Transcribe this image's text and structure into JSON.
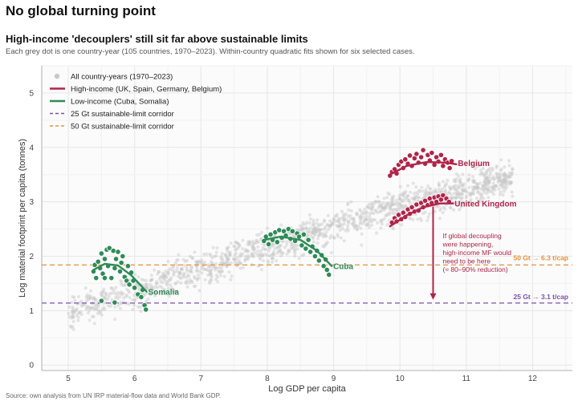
{
  "header": {
    "title": "No global turning point",
    "subtitle": "High-income 'decouplers' still sit far above sustainable limits",
    "caption": "Each grey dot is one country-year (105 countries, 1970–2023). Within-country quadratic fits shown for six selected cases.",
    "source": "Source: own analysis from UN IRP material-flow data and World Bank GDP."
  },
  "colors": {
    "grey": "#c8c8c8",
    "high_income": "#b0254a",
    "low_income": "#2e8b57",
    "corridor_25": "#7b52ab",
    "corridor_50": "#e8923a"
  },
  "chart_data": {
    "type": "scatter",
    "xlabel": "Log GDP per capita",
    "ylabel": "Log material footprint per capita (tonnes)",
    "xlim": [
      4.6,
      12.6
    ],
    "ylim": [
      -0.1,
      5.5
    ],
    "xticks": [
      5,
      6,
      7,
      8,
      9,
      10,
      11,
      12
    ],
    "yticks": [
      0,
      1,
      2,
      3,
      4,
      5
    ],
    "grid": true,
    "legend_position": "top-left",
    "legend": [
      {
        "label": "All country-years (1970–2023)",
        "kind": "dot",
        "color_key": "grey"
      },
      {
        "label": "High-income (UK, Spain, Germany, Belgium)",
        "kind": "line",
        "color_key": "high_income"
      },
      {
        "label": "Low-income (Cuba, Somalia)",
        "kind": "line",
        "color_key": "low_income"
      },
      {
        "label": "25 Gt sustainable-limit corridor",
        "kind": "dash",
        "color_key": "corridor_25"
      },
      {
        "label": "50 Gt sustainable-limit corridor",
        "kind": "dash",
        "color_key": "corridor_50"
      }
    ],
    "reference_lines": [
      {
        "y": 1.84,
        "label": "50 Gt → 6.3 t/cap",
        "color_key": "corridor_50"
      },
      {
        "y": 1.14,
        "label": "25 Gt → 3.1 t/cap",
        "color_key": "corridor_25"
      }
    ],
    "highlighted": [
      {
        "name": "Belgium",
        "group": "high",
        "x_range": [
          9.85,
          10.85
        ],
        "label_x": 10.85,
        "label_y": 3.72,
        "curve": [
          [
            9.85,
            3.5
          ],
          [
            10.1,
            3.66
          ],
          [
            10.4,
            3.73
          ],
          [
            10.7,
            3.72
          ],
          [
            10.85,
            3.69
          ]
        ],
        "points": [
          [
            9.85,
            3.48
          ],
          [
            9.88,
            3.55
          ],
          [
            9.92,
            3.6
          ],
          [
            9.95,
            3.52
          ],
          [
            9.98,
            3.68
          ],
          [
            10.02,
            3.74
          ],
          [
            10.05,
            3.62
          ],
          [
            10.08,
            3.78
          ],
          [
            10.12,
            3.7
          ],
          [
            10.15,
            3.85
          ],
          [
            10.18,
            3.66
          ],
          [
            10.22,
            3.8
          ],
          [
            10.25,
            3.88
          ],
          [
            10.28,
            3.72
          ],
          [
            10.32,
            3.82
          ],
          [
            10.35,
            3.95
          ],
          [
            10.38,
            3.7
          ],
          [
            10.42,
            3.86
          ],
          [
            10.45,
            3.76
          ],
          [
            10.48,
            3.9
          ],
          [
            10.52,
            3.68
          ],
          [
            10.55,
            3.82
          ],
          [
            10.58,
            3.74
          ],
          [
            10.62,
            3.86
          ],
          [
            10.65,
            3.66
          ],
          [
            10.68,
            3.78
          ],
          [
            10.72,
            3.72
          ],
          [
            10.75,
            3.62
          ],
          [
            10.78,
            3.75
          ]
        ]
      },
      {
        "name": "United Kingdom",
        "group": "high",
        "x_range": [
          9.85,
          10.8
        ],
        "label_x": 10.8,
        "label_y": 2.97,
        "curve": [
          [
            9.85,
            2.55
          ],
          [
            10.1,
            2.75
          ],
          [
            10.35,
            2.9
          ],
          [
            10.6,
            2.97
          ],
          [
            10.8,
            2.97
          ]
        ],
        "points": [
          [
            9.88,
            2.62
          ],
          [
            9.92,
            2.7
          ],
          [
            9.95,
            2.64
          ],
          [
            9.98,
            2.76
          ],
          [
            10.02,
            2.68
          ],
          [
            10.05,
            2.8
          ],
          [
            10.08,
            2.72
          ],
          [
            10.12,
            2.86
          ],
          [
            10.15,
            2.78
          ],
          [
            10.18,
            2.9
          ],
          [
            10.22,
            2.82
          ],
          [
            10.25,
            2.95
          ],
          [
            10.28,
            2.84
          ],
          [
            10.32,
            2.98
          ],
          [
            10.35,
            2.9
          ],
          [
            10.38,
            3.02
          ],
          [
            10.42,
            2.94
          ],
          [
            10.45,
            3.06
          ],
          [
            10.48,
            2.98
          ],
          [
            10.52,
            3.08
          ],
          [
            10.55,
            3.0
          ],
          [
            10.58,
            3.1
          ],
          [
            10.62,
            3.04
          ],
          [
            10.65,
            3.12
          ],
          [
            10.7,
            3.06
          ],
          [
            10.74,
            3.0
          ]
        ]
      },
      {
        "name": "Cuba",
        "group": "low",
        "x_range": [
          7.95,
          8.97
        ],
        "label_x": 8.97,
        "label_y": 1.82,
        "curve": [
          [
            7.95,
            2.3
          ],
          [
            8.2,
            2.36
          ],
          [
            8.5,
            2.3
          ],
          [
            8.75,
            2.1
          ],
          [
            8.97,
            1.82
          ]
        ],
        "points": [
          [
            7.95,
            2.28
          ],
          [
            7.98,
            2.36
          ],
          [
            8.02,
            2.22
          ],
          [
            8.05,
            2.4
          ],
          [
            8.08,
            2.3
          ],
          [
            8.12,
            2.44
          ],
          [
            8.15,
            2.26
          ],
          [
            8.18,
            2.48
          ],
          [
            8.22,
            2.34
          ],
          [
            8.25,
            2.46
          ],
          [
            8.28,
            2.38
          ],
          [
            8.32,
            2.5
          ],
          [
            8.35,
            2.32
          ],
          [
            8.38,
            2.46
          ],
          [
            8.42,
            2.28
          ],
          [
            8.45,
            2.42
          ],
          [
            8.48,
            2.36
          ],
          [
            8.52,
            2.2
          ],
          [
            8.55,
            2.4
          ],
          [
            8.58,
            2.14
          ],
          [
            8.62,
            2.3
          ],
          [
            8.65,
            2.08
          ],
          [
            8.68,
            2.18
          ],
          [
            8.72,
            2.0
          ],
          [
            8.75,
            2.1
          ],
          [
            8.78,
            1.92
          ],
          [
            8.82,
            2.02
          ],
          [
            8.85,
            1.82
          ],
          [
            8.88,
            1.94
          ],
          [
            8.9,
            1.75
          ],
          [
            8.93,
            1.66
          ]
        ]
      },
      {
        "name": "Somalia",
        "group": "low",
        "x_range": [
          5.38,
          6.18
        ],
        "label_x": 6.18,
        "label_y": 1.35,
        "curve": [
          [
            5.38,
            1.75
          ],
          [
            5.55,
            1.86
          ],
          [
            5.75,
            1.83
          ],
          [
            5.95,
            1.65
          ],
          [
            6.18,
            1.35
          ]
        ],
        "points": [
          [
            5.38,
            1.72
          ],
          [
            5.4,
            1.84
          ],
          [
            5.42,
            1.6
          ],
          [
            5.45,
            1.9
          ],
          [
            5.48,
            1.78
          ],
          [
            5.5,
            2.05
          ],
          [
            5.52,
            1.68
          ],
          [
            5.55,
            1.95
          ],
          [
            5.58,
            2.12
          ],
          [
            5.6,
            1.82
          ],
          [
            5.62,
            2.15
          ],
          [
            5.65,
            1.6
          ],
          [
            5.68,
            2.1
          ],
          [
            5.7,
            1.78
          ],
          [
            5.72,
            1.95
          ],
          [
            5.75,
            2.08
          ],
          [
            5.78,
            1.72
          ],
          [
            5.8,
            1.88
          ],
          [
            5.82,
            2.0
          ],
          [
            5.85,
            1.62
          ],
          [
            5.88,
            1.55
          ],
          [
            5.9,
            1.82
          ],
          [
            5.92,
            1.48
          ],
          [
            5.95,
            1.7
          ],
          [
            5.98,
            1.55
          ],
          [
            6.0,
            1.42
          ],
          [
            6.05,
            1.3
          ],
          [
            6.1,
            1.25
          ],
          [
            6.12,
            1.38
          ],
          [
            6.15,
            1.1
          ],
          [
            6.17,
            1.02
          ],
          [
            5.55,
            1.6
          ],
          [
            5.5,
            1.18
          ],
          [
            5.7,
            1.15
          ]
        ]
      }
    ],
    "annotation": {
      "text_lines": [
        "If global decoupling",
        "were happening,",
        "high-income MF would",
        "need to be here",
        "(≈ 80–90% reduction)"
      ],
      "arrow_x": 10.5,
      "arrow_from_y": 2.97,
      "arrow_to_y": 1.2
    }
  }
}
